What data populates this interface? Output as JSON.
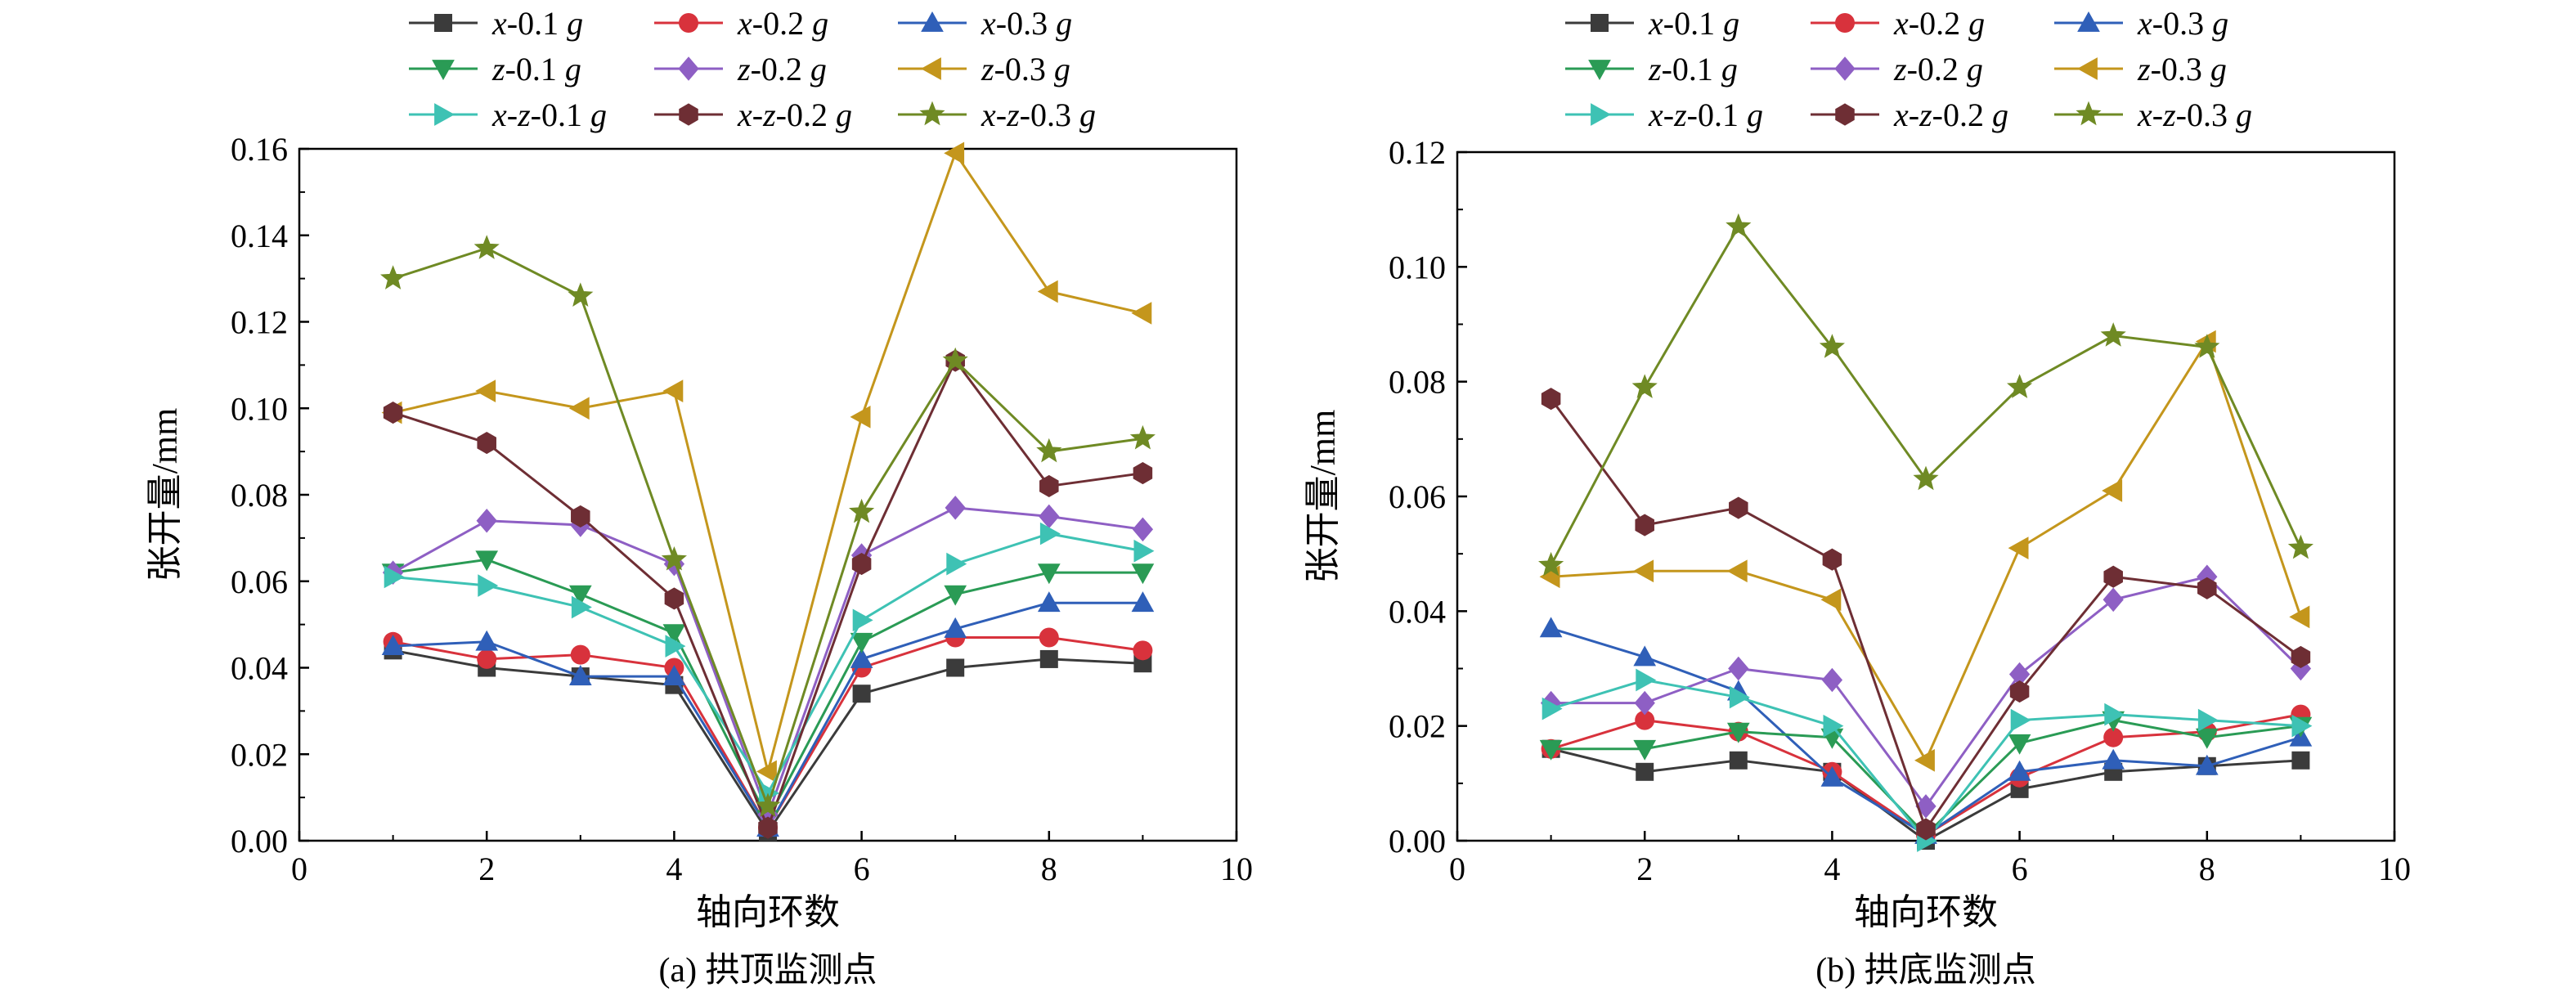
{
  "chart_data": [
    {
      "type": "line",
      "caption": "(a) 拱顶监测点",
      "xlabel": "轴向环数",
      "ylabel": "张开量/mm",
      "xlim": [
        0,
        10
      ],
      "ylim": [
        0,
        0.16
      ],
      "xticks": [
        0,
        2,
        4,
        6,
        8,
        10
      ],
      "xtick_labels": [
        "0",
        "2",
        "4",
        "6",
        "8",
        "10"
      ],
      "yticks": [
        0,
        0.02,
        0.04,
        0.06,
        0.08,
        0.1,
        0.12,
        0.14,
        0.16
      ],
      "ytick_labels": [
        "0.00",
        "0.02",
        "0.04",
        "0.06",
        "0.08",
        "0.10",
        "0.12",
        "0.14",
        "0.16"
      ],
      "legend_position": "top, above plot",
      "x": [
        1,
        2,
        3,
        4,
        5,
        6,
        7,
        8,
        9
      ],
      "series": [
        {
          "name": "x-0.1 g",
          "values": [
            0.044,
            0.04,
            0.038,
            0.036,
            0.002,
            0.034,
            0.04,
            0.042,
            0.041
          ]
        },
        {
          "name": "x-0.2 g",
          "values": [
            0.046,
            0.042,
            0.043,
            0.04,
            0.003,
            0.04,
            0.047,
            0.047,
            0.044
          ]
        },
        {
          "name": "x-0.3 g",
          "values": [
            0.045,
            0.046,
            0.038,
            0.038,
            0.003,
            0.042,
            0.049,
            0.055,
            0.055
          ]
        },
        {
          "name": "z-0.1 g",
          "values": [
            0.062,
            0.065,
            0.057,
            0.048,
            0.005,
            0.046,
            0.057,
            0.062,
            0.062
          ]
        },
        {
          "name": "z-0.2 g",
          "values": [
            0.062,
            0.074,
            0.073,
            0.064,
            0.006,
            0.066,
            0.077,
            0.075,
            0.072
          ]
        },
        {
          "name": "z-0.3 g",
          "values": [
            0.099,
            0.104,
            0.1,
            0.104,
            0.016,
            0.098,
            0.159,
            0.127,
            0.122
          ]
        },
        {
          "name": "x-z-0.1 g",
          "values": [
            0.061,
            0.059,
            0.054,
            0.045,
            0.011,
            0.051,
            0.064,
            0.071,
            0.067
          ]
        },
        {
          "name": "x-z-0.2 g",
          "values": [
            0.099,
            0.092,
            0.075,
            0.056,
            0.003,
            0.064,
            0.111,
            0.082,
            0.085
          ]
        },
        {
          "name": "x-z-0.3 g",
          "values": [
            0.13,
            0.137,
            0.126,
            0.065,
            0.008,
            0.076,
            0.111,
            0.09,
            0.093
          ]
        }
      ]
    },
    {
      "type": "line",
      "caption": "(b) 拱底监测点",
      "xlabel": "轴向环数",
      "ylabel": "张开量/mm",
      "xlim": [
        0,
        10
      ],
      "ylim": [
        0,
        0.12
      ],
      "xticks": [
        0,
        2,
        4,
        6,
        8,
        10
      ],
      "xtick_labels": [
        "0",
        "2",
        "4",
        "6",
        "8",
        "10"
      ],
      "yticks": [
        0,
        0.02,
        0.04,
        0.06,
        0.08,
        0.1,
        0.12
      ],
      "ytick_labels": [
        "0.00",
        "0.02",
        "0.04",
        "0.06",
        "0.08",
        "0.10",
        "0.12"
      ],
      "legend_position": "top, above plot",
      "x": [
        1,
        2,
        3,
        4,
        5,
        6,
        7,
        8,
        9
      ],
      "series": [
        {
          "name": "x-0.1 g",
          "values": [
            0.016,
            0.012,
            0.014,
            0.012,
            0.0,
            0.009,
            0.012,
            0.013,
            0.014
          ]
        },
        {
          "name": "x-0.2 g",
          "values": [
            0.016,
            0.021,
            0.019,
            0.012,
            0.001,
            0.011,
            0.018,
            0.019,
            0.022
          ]
        },
        {
          "name": "x-0.3 g",
          "values": [
            0.037,
            0.032,
            0.026,
            0.011,
            0.001,
            0.012,
            0.014,
            0.013,
            0.018
          ]
        },
        {
          "name": "z-0.1 g",
          "values": [
            0.016,
            0.016,
            0.019,
            0.018,
            0.001,
            0.017,
            0.021,
            0.018,
            0.02
          ]
        },
        {
          "name": "z-0.2 g",
          "values": [
            0.024,
            0.024,
            0.03,
            0.028,
            0.006,
            0.029,
            0.042,
            0.046,
            0.03
          ]
        },
        {
          "name": "z-0.3 g",
          "values": [
            0.046,
            0.047,
            0.047,
            0.042,
            0.014,
            0.051,
            0.061,
            0.087,
            0.039
          ]
        },
        {
          "name": "x-z-0.1 g",
          "values": [
            0.023,
            0.028,
            0.025,
            0.02,
            0.0,
            0.021,
            0.022,
            0.021,
            0.02
          ]
        },
        {
          "name": "x-z-0.2 g",
          "values": [
            0.077,
            0.055,
            0.058,
            0.049,
            0.002,
            0.026,
            0.046,
            0.044,
            0.032
          ]
        },
        {
          "name": "x-z-0.3 g",
          "values": [
            0.048,
            0.079,
            0.107,
            0.086,
            0.063,
            0.079,
            0.088,
            0.086,
            0.051
          ]
        }
      ]
    }
  ],
  "series_styles": [
    {
      "color": "#3b3b3b",
      "marker": "square"
    },
    {
      "color": "#d8323c",
      "marker": "circle"
    },
    {
      "color": "#2f5fb8",
      "marker": "triangle-up"
    },
    {
      "color": "#2a9b55",
      "marker": "triangle-down"
    },
    {
      "color": "#8e5fc4",
      "marker": "diamond"
    },
    {
      "color": "#c4961c",
      "marker": "triangle-left"
    },
    {
      "color": "#3ec2b4",
      "marker": "triangle-right"
    },
    {
      "color": "#6e2e34",
      "marker": "hexagon"
    },
    {
      "color": "#6f8a24",
      "marker": "star"
    }
  ]
}
